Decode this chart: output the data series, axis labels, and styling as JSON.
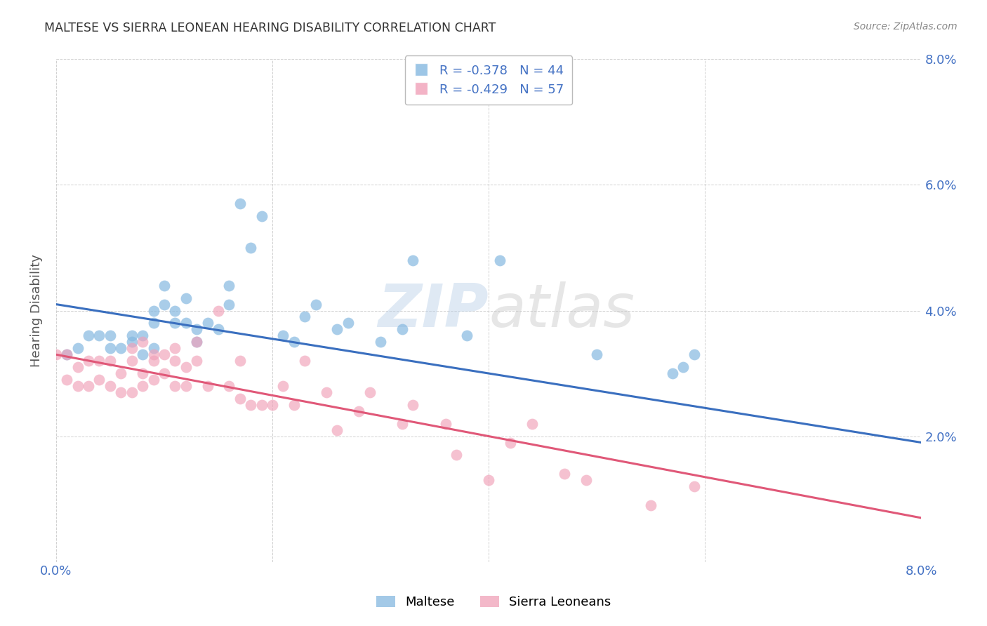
{
  "title": "MALTESE VS SIERRA LEONEAN HEARING DISABILITY CORRELATION CHART",
  "source": "Source: ZipAtlas.com",
  "ylabel": "Hearing Disability",
  "watermark": "ZIPatlas",
  "xlim": [
    0.0,
    0.08
  ],
  "ylim": [
    0.0,
    0.08
  ],
  "xticks": [
    0.0,
    0.02,
    0.04,
    0.06,
    0.08
  ],
  "yticks": [
    0.0,
    0.02,
    0.04,
    0.06,
    0.08
  ],
  "ytick_labels_right": [
    "",
    "2.0%",
    "4.0%",
    "6.0%",
    "8.0%"
  ],
  "xtick_labels": [
    "0.0%",
    "",
    "",
    "",
    "8.0%"
  ],
  "blue_color": "#85b8e0",
  "line_blue": "#3a6fbf",
  "line_pink": "#e05878",
  "pink_color": "#f0a0b8",
  "legend_R_blue": "-0.378",
  "legend_N_blue": "44",
  "legend_R_pink": "-0.429",
  "legend_N_pink": "57",
  "legend_label_blue": "Maltese",
  "legend_label_pink": "Sierra Leoneans",
  "blue_x": [
    0.001,
    0.002,
    0.003,
    0.004,
    0.005,
    0.005,
    0.006,
    0.007,
    0.007,
    0.008,
    0.008,
    0.009,
    0.009,
    0.009,
    0.01,
    0.01,
    0.011,
    0.011,
    0.012,
    0.012,
    0.013,
    0.013,
    0.014,
    0.015,
    0.016,
    0.016,
    0.017,
    0.018,
    0.019,
    0.021,
    0.022,
    0.023,
    0.024,
    0.026,
    0.027,
    0.03,
    0.032,
    0.033,
    0.038,
    0.041,
    0.05,
    0.057,
    0.058,
    0.059
  ],
  "blue_y": [
    0.033,
    0.034,
    0.036,
    0.036,
    0.034,
    0.036,
    0.034,
    0.035,
    0.036,
    0.033,
    0.036,
    0.034,
    0.038,
    0.04,
    0.041,
    0.044,
    0.038,
    0.04,
    0.038,
    0.042,
    0.035,
    0.037,
    0.038,
    0.037,
    0.041,
    0.044,
    0.057,
    0.05,
    0.055,
    0.036,
    0.035,
    0.039,
    0.041,
    0.037,
    0.038,
    0.035,
    0.037,
    0.048,
    0.036,
    0.048,
    0.033,
    0.03,
    0.031,
    0.033
  ],
  "pink_x": [
    0.0,
    0.001,
    0.001,
    0.002,
    0.002,
    0.003,
    0.003,
    0.004,
    0.004,
    0.005,
    0.005,
    0.006,
    0.006,
    0.007,
    0.007,
    0.007,
    0.008,
    0.008,
    0.008,
    0.009,
    0.009,
    0.009,
    0.01,
    0.01,
    0.011,
    0.011,
    0.011,
    0.012,
    0.012,
    0.013,
    0.013,
    0.014,
    0.015,
    0.016,
    0.017,
    0.017,
    0.018,
    0.019,
    0.02,
    0.021,
    0.022,
    0.023,
    0.025,
    0.026,
    0.028,
    0.029,
    0.032,
    0.033,
    0.036,
    0.037,
    0.04,
    0.042,
    0.044,
    0.047,
    0.049,
    0.055,
    0.059
  ],
  "pink_y": [
    0.033,
    0.033,
    0.029,
    0.028,
    0.031,
    0.028,
    0.032,
    0.029,
    0.032,
    0.028,
    0.032,
    0.027,
    0.03,
    0.027,
    0.032,
    0.034,
    0.028,
    0.03,
    0.035,
    0.029,
    0.032,
    0.033,
    0.03,
    0.033,
    0.028,
    0.032,
    0.034,
    0.028,
    0.031,
    0.035,
    0.032,
    0.028,
    0.04,
    0.028,
    0.026,
    0.032,
    0.025,
    0.025,
    0.025,
    0.028,
    0.025,
    0.032,
    0.027,
    0.021,
    0.024,
    0.027,
    0.022,
    0.025,
    0.022,
    0.017,
    0.013,
    0.019,
    0.022,
    0.014,
    0.013,
    0.009,
    0.012
  ],
  "title_color": "#333333",
  "source_color": "#888888",
  "axis_label_color": "#555555",
  "tick_color": "#4472c4",
  "grid_color": "#d0d0d0",
  "background_color": "#ffffff"
}
